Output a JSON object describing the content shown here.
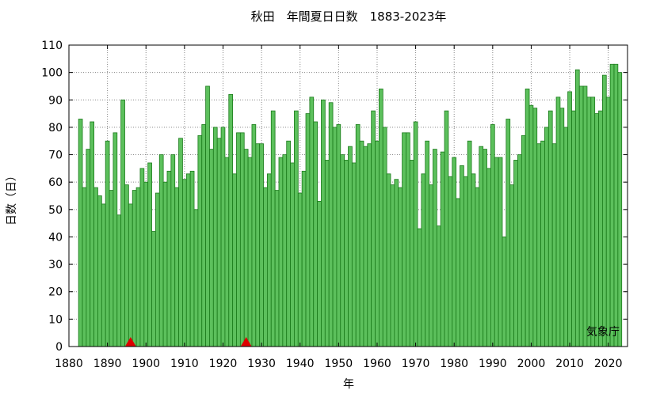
{
  "chart_data": {
    "type": "bar",
    "title": "秋田　年間夏日日数　1883-2023年",
    "xlabel": "年",
    "ylabel": "日数（日）",
    "xlim": [
      1880,
      2025
    ],
    "ylim": [
      0,
      110
    ],
    "xticks": [
      1880,
      1890,
      1900,
      1910,
      1920,
      1930,
      1940,
      1950,
      1960,
      1970,
      1980,
      1990,
      2000,
      2010,
      2020
    ],
    "yticks": [
      0,
      10,
      20,
      30,
      40,
      50,
      60,
      70,
      80,
      90,
      100,
      110
    ],
    "grid": true,
    "start_year": 1883,
    "values": [
      83,
      58,
      72,
      82,
      58,
      55,
      52,
      75,
      57,
      78,
      48,
      90,
      59,
      52,
      57,
      58,
      65,
      60,
      67,
      42,
      56,
      70,
      60,
      64,
      70,
      58,
      76,
      61,
      63,
      64,
      50,
      77,
      81,
      95,
      72,
      80,
      76,
      80,
      69,
      92,
      63,
      78,
      78,
      72,
      69,
      81,
      74,
      74,
      58,
      63,
      86,
      57,
      69,
      70,
      75,
      67,
      86,
      56,
      64,
      85,
      91,
      82,
      53,
      90,
      68,
      89,
      80,
      81,
      70,
      68,
      73,
      67,
      81,
      75,
      73,
      74,
      86,
      75,
      94,
      80,
      63,
      59,
      61,
      58,
      78,
      78,
      68,
      82,
      43,
      63,
      75,
      59,
      72,
      44,
      71,
      86,
      62,
      69,
      54,
      66,
      62,
      75,
      63,
      58,
      73,
      72,
      65,
      81,
      69,
      69,
      40,
      83,
      59,
      68,
      70,
      77,
      94,
      88,
      87,
      74,
      75,
      80,
      86,
      74,
      91,
      87,
      80,
      93,
      86,
      101,
      95,
      95,
      91,
      91,
      85,
      86,
      99,
      91,
      103,
      103,
      100
    ],
    "markers": [
      {
        "x": 1896,
        "y": 0,
        "shape": "triangle",
        "color": "#dd0000"
      },
      {
        "x": 1926,
        "y": 0,
        "shape": "triangle",
        "color": "#dd0000"
      }
    ],
    "bar_color": "#5cc05c",
    "bar_edge_color": "#1a7a1a",
    "source": "気象庁"
  }
}
